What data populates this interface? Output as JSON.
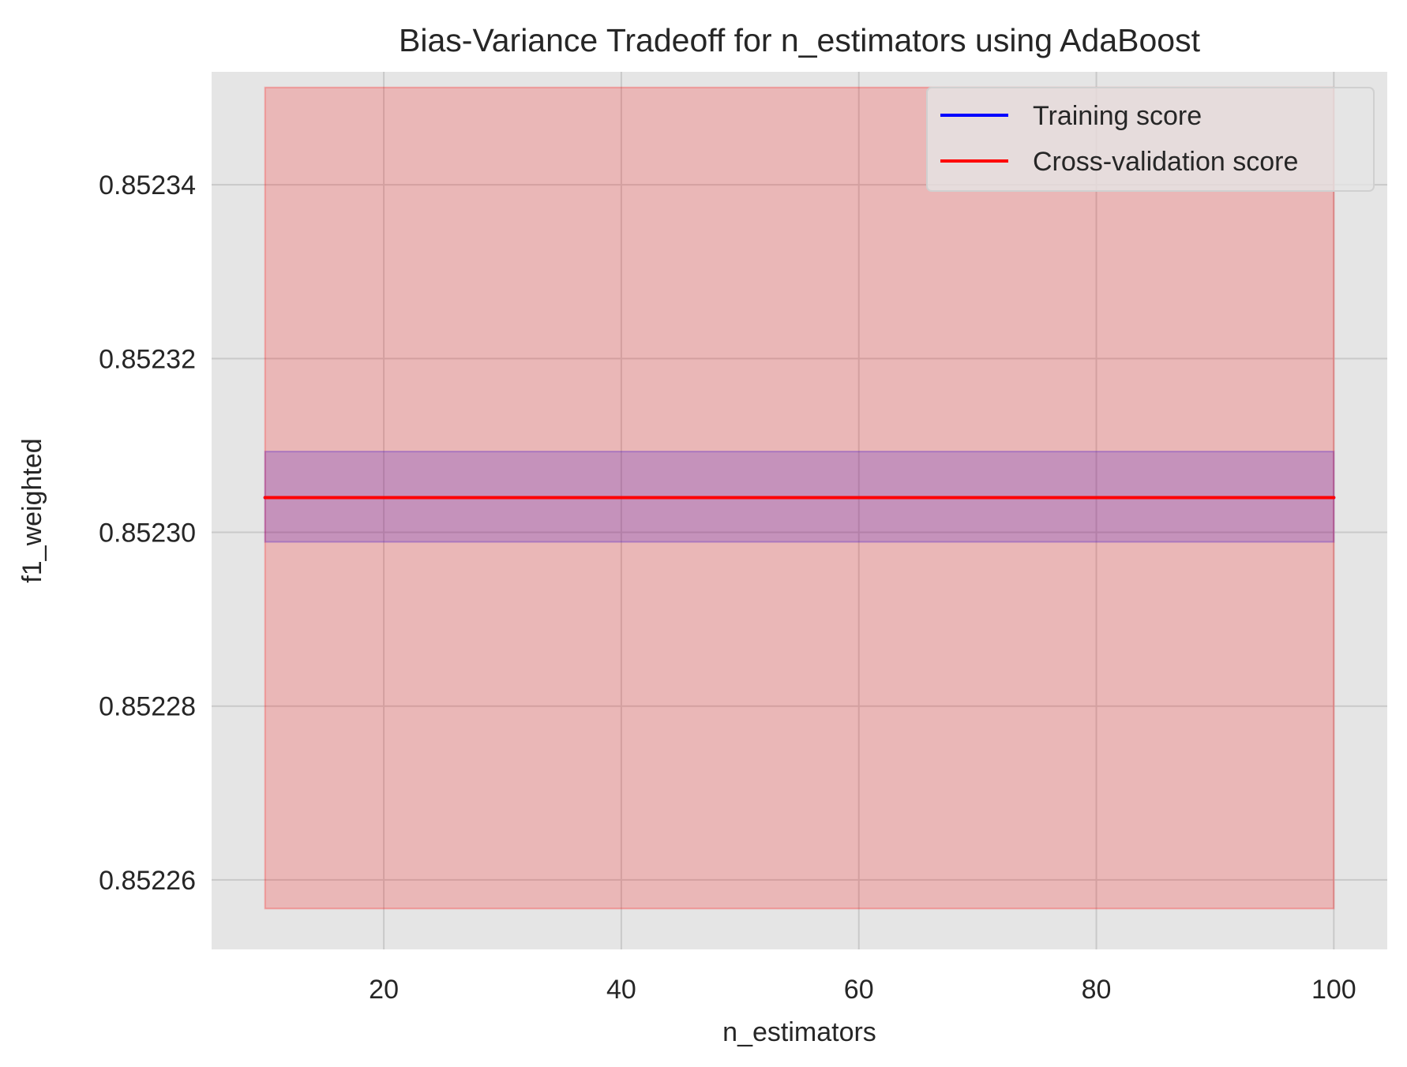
{
  "chart_data": {
    "type": "line",
    "title": "Bias-Variance Tradeoff for n_estimators using AdaBoost",
    "xlabel": "n_estimators",
    "ylabel": "f1_weighted",
    "x": [
      10,
      20,
      30,
      40,
      50,
      60,
      70,
      80,
      90,
      100
    ],
    "xlim": [
      5.5,
      104.5
    ],
    "ylim": [
      0.852252,
      0.852353
    ],
    "xticks": [
      20,
      40,
      60,
      80,
      100
    ],
    "xtick_labels": [
      "20",
      "40",
      "60",
      "80",
      "100"
    ],
    "yticks": [
      0.85226,
      0.85228,
      0.8523,
      0.85232,
      0.85234
    ],
    "ytick_labels": [
      "0.85226",
      "0.85228",
      "0.85230",
      "0.85232",
      "0.85234"
    ],
    "grid": true,
    "legend_position": "top-right",
    "series": [
      {
        "name": "Training score",
        "color": "#0000ff",
        "values": [
          0.852304,
          0.852304,
          0.852304,
          0.852304,
          0.852304,
          0.852304,
          0.852304,
          0.852304,
          0.852304,
          0.852304
        ],
        "band_lower": 0.8522989,
        "band_upper": 0.8523093,
        "band_color": "#0000ff"
      },
      {
        "name": "Cross-validation score",
        "color": "#ff0000",
        "values": [
          0.852304,
          0.852304,
          0.852304,
          0.852304,
          0.852304,
          0.852304,
          0.852304,
          0.852304,
          0.852304,
          0.852304
        ],
        "band_lower": 0.8522567,
        "band_upper": 0.8523512,
        "band_color": "#ff0000"
      }
    ]
  }
}
